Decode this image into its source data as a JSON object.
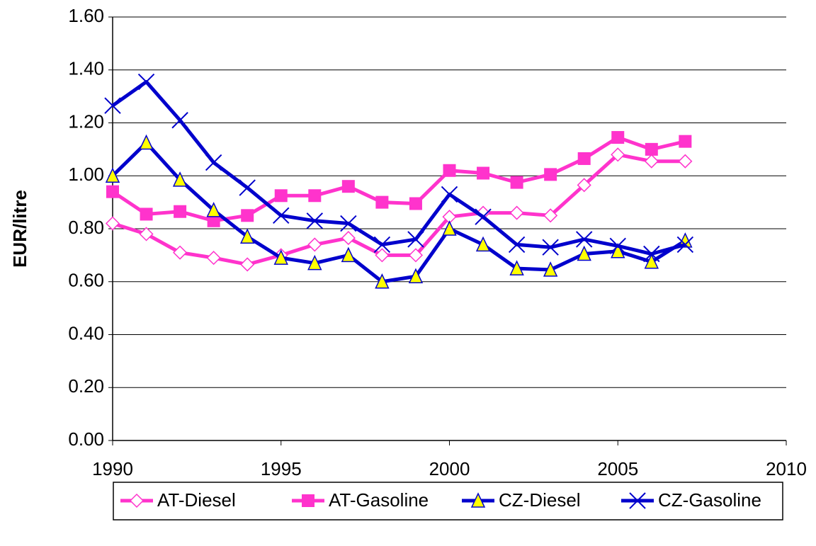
{
  "chart_data": {
    "type": "line",
    "y_label": "EUR/litre",
    "x": [
      1990,
      1991,
      1992,
      1993,
      1994,
      1995,
      1996,
      1997,
      1998,
      1999,
      2000,
      2001,
      2002,
      2003,
      2004,
      2005,
      2006,
      2007
    ],
    "xlim": [
      1990,
      2010
    ],
    "xticks": [
      1990,
      1995,
      2000,
      2005,
      2010
    ],
    "ylim": [
      0,
      1.6
    ],
    "yticks": [
      {
        "value": 0,
        "label": "0.00"
      },
      {
        "value": 0.2,
        "label": "0.20"
      },
      {
        "value": 0.4,
        "label": "0.40"
      },
      {
        "value": 0.6,
        "label": "0.60"
      },
      {
        "value": 0.8,
        "label": "0.80"
      },
      {
        "value": 1.0,
        "label": "1.00"
      },
      {
        "value": 1.2,
        "label": "1.20"
      },
      {
        "value": 1.4,
        "label": "1.40"
      },
      {
        "value": 1.6,
        "label": "1.60"
      }
    ],
    "grid": true,
    "legend": "bottom",
    "series": [
      {
        "name": "AT-Diesel",
        "color": "#ff33cc",
        "marker": "diamond",
        "values": [
          0.82,
          0.78,
          0.71,
          0.69,
          0.665,
          0.7,
          0.74,
          0.765,
          0.7,
          0.7,
          0.845,
          0.86,
          0.86,
          0.85,
          0.965,
          1.08,
          1.055,
          1.055
        ]
      },
      {
        "name": "AT-Gasoline",
        "color": "#ff33cc",
        "marker": "square",
        "values": [
          0.94,
          0.855,
          0.865,
          0.83,
          0.85,
          0.925,
          0.925,
          0.96,
          0.9,
          0.895,
          1.02,
          1.01,
          0.975,
          1.005,
          1.065,
          1.145,
          1.1,
          1.13
        ]
      },
      {
        "name": "CZ-Diesel",
        "color": "#0000cc",
        "marker": "triangle",
        "values": [
          1.0,
          1.125,
          0.985,
          0.87,
          0.77,
          0.69,
          0.67,
          0.7,
          0.6,
          0.62,
          0.8,
          0.74,
          0.65,
          0.645,
          0.705,
          0.715,
          0.675,
          0.755
        ]
      },
      {
        "name": "CZ-Gasoline",
        "color": "#0000cc",
        "marker": "x",
        "values": [
          1.265,
          1.355,
          1.21,
          1.05,
          0.955,
          0.85,
          0.83,
          0.82,
          0.74,
          0.76,
          0.93,
          0.845,
          0.74,
          0.73,
          0.76,
          0.735,
          0.705,
          0.74
        ]
      }
    ]
  }
}
